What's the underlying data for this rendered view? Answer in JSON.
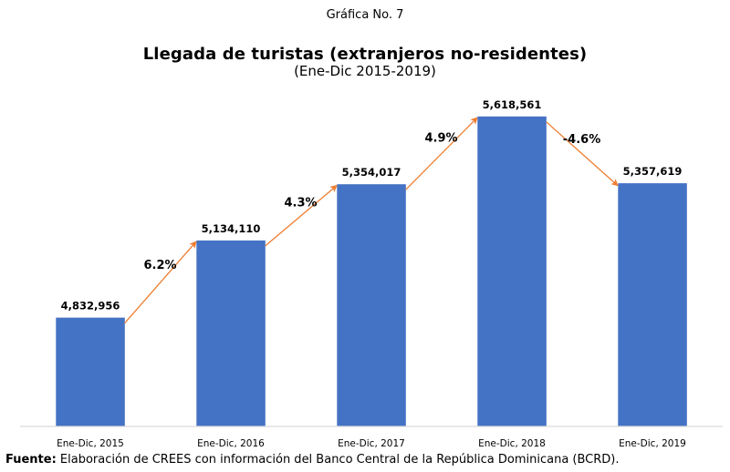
{
  "caption": "Gráfica No. 7",
  "source": {
    "label": "Fuente:",
    "text": " Elaboración de CREES con información del Banco Central de la República Dominicana (BCRD)."
  },
  "colors": {
    "bar": "#4472C4",
    "arrow": "#ED7D31",
    "axis": "#D9D9D9"
  },
  "chart_data": {
    "type": "bar",
    "title": "Llegada de turistas (extranjeros no-residentes)",
    "subtitle": "(Ene-Dic 2015-2019)",
    "xlabel": "",
    "ylabel": "",
    "categories": [
      "Ene-Dic, 2015",
      "Ene-Dic, 2016",
      "Ene-Dic, 2017",
      "Ene-Dic, 2018",
      "Ene-Dic, 2019"
    ],
    "values": [
      4832956,
      5134110,
      5354017,
      5618561,
      5357619
    ],
    "value_labels": [
      "4,832,956",
      "5,134,110",
      "5,354,017",
      "5,618,561",
      "5,357,619"
    ],
    "growth_annotations": [
      {
        "from": "Ene-Dic, 2015",
        "to": "Ene-Dic, 2016",
        "label": "6.2%"
      },
      {
        "from": "Ene-Dic, 2016",
        "to": "Ene-Dic, 2017",
        "label": "4.3%"
      },
      {
        "from": "Ene-Dic, 2017",
        "to": "Ene-Dic, 2018",
        "label": "4.9%"
      },
      {
        "from": "Ene-Dic, 2018",
        "to": "Ene-Dic, 2019",
        "label": "-4.6%"
      }
    ],
    "ylim": [
      4408000,
      5625000
    ],
    "grid": false,
    "legend": "none",
    "y_axis_visible": false
  }
}
